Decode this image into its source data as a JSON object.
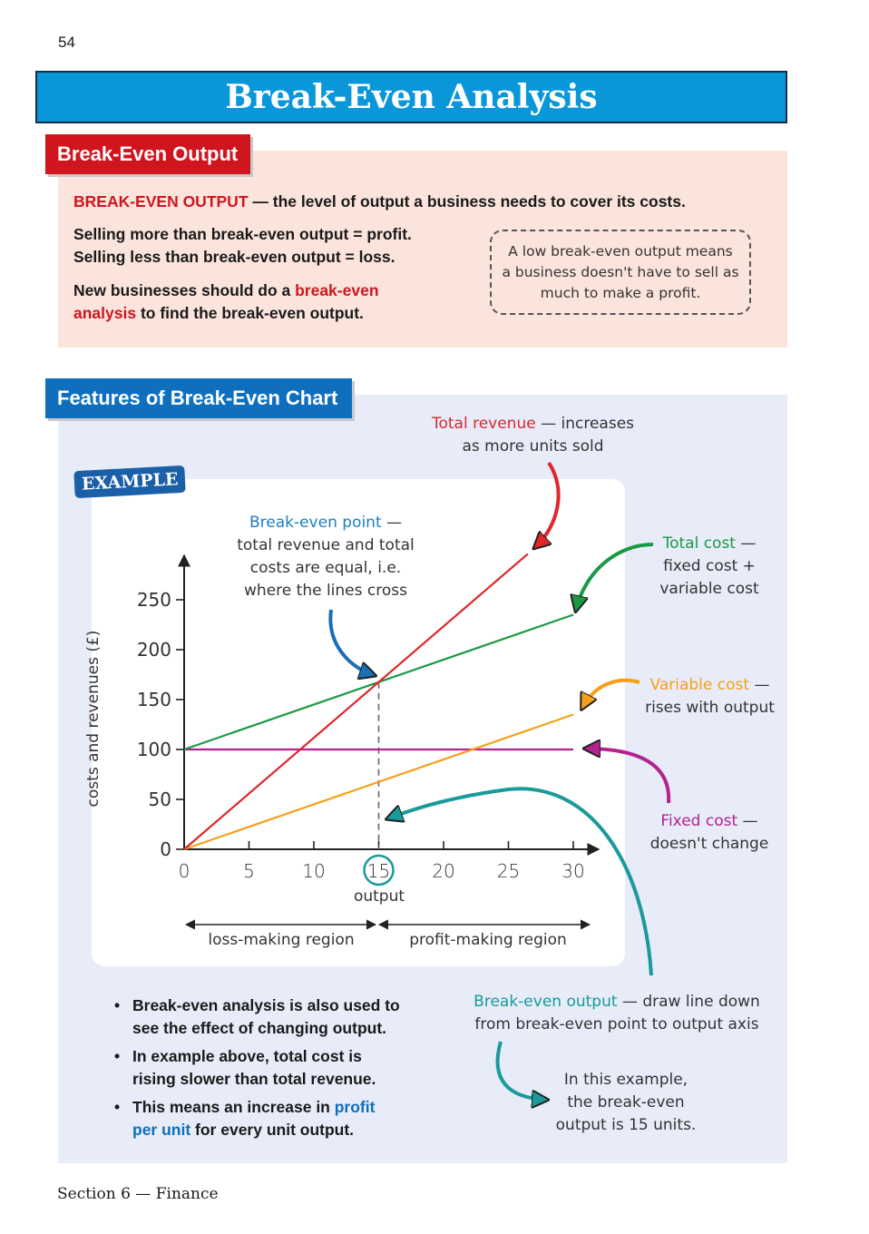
{
  "page_number": "54",
  "title": "Break-Even Analysis",
  "section1": {
    "heading": "Break-Even Output",
    "definition_term": "BREAK-EVEN OUTPUT",
    "definition_text": " — the level of output a business needs to cover its costs.",
    "line1": "Selling more than break-even output = profit.",
    "line2": "Selling less than break-even output = loss.",
    "line3_a": "New businesses should do a ",
    "line3_b": "break-even",
    "line4_a": "analysis",
    "line4_b": " to find the break-even output.",
    "callout": [
      "A low break-even output means",
      "a business doesn't have to sell as",
      "much to make a profit."
    ]
  },
  "section2": {
    "heading": "Features of Break-Even Chart",
    "example_badge": "EXAMPLE",
    "annotations": {
      "total_revenue": {
        "term": "Total revenue",
        "rest": " — increases",
        "line2": "as more units sold"
      },
      "break_even_point": {
        "term": "Break-even point",
        "rest": " —",
        "lines": [
          "total revenue and total",
          "costs are equal, i.e.",
          "where the lines cross"
        ]
      },
      "total_cost": {
        "term": "Total cost",
        "rest": " —",
        "lines": [
          "fixed cost +",
          "variable cost"
        ]
      },
      "variable_cost": {
        "term": "Variable cost",
        "rest": " —",
        "line2": "rises with output"
      },
      "fixed_cost": {
        "term": "Fixed cost",
        "rest": " —",
        "line2": "doesn't change"
      },
      "break_even_output": {
        "term": "Break-even output",
        "rest": " — draw line down",
        "line2": "from break-even point to output axis"
      },
      "example_note": [
        "In this example,",
        "the break-even",
        "output is 15 units."
      ]
    },
    "regions": {
      "loss": "loss-making region",
      "profit": "profit-making region"
    },
    "bullets": [
      {
        "a": "Break-even analysis is also used to",
        "b": "see the effect of changing output."
      },
      {
        "a": "In example above, total cost is",
        "b": "rising slower than total revenue."
      },
      {
        "a": "This means an increase in ",
        "hl1": "profit",
        "b_hl": "per unit",
        "b": " for every unit output."
      }
    ]
  },
  "footer": "Section 6 — Finance",
  "chart_data": {
    "type": "line",
    "xlabel": "output",
    "ylabel": "costs and revenues (£)",
    "xlim": [
      0,
      30
    ],
    "ylim": [
      0,
      270
    ],
    "xticks": [
      "0",
      "5",
      "10",
      "15",
      "20",
      "25",
      "30"
    ],
    "yticks": [
      "0",
      "50",
      "100",
      "150",
      "200",
      "250"
    ],
    "highlight_x": "15",
    "series": [
      {
        "name": "Total revenue",
        "color": "#e0262b",
        "points": [
          [
            0,
            0
          ],
          [
            26.5,
            296
          ]
        ]
      },
      {
        "name": "Total cost",
        "color": "#1a9a45",
        "points": [
          [
            0,
            100
          ],
          [
            30,
            235
          ]
        ]
      },
      {
        "name": "Variable cost",
        "color": "#f5a01a",
        "points": [
          [
            0,
            0
          ],
          [
            30,
            135
          ]
        ]
      },
      {
        "name": "Fixed cost",
        "color": "#b3238f",
        "points": [
          [
            0,
            100
          ],
          [
            30,
            100
          ]
        ]
      }
    ],
    "break_even": {
      "x": 15,
      "y": 167.5
    }
  }
}
